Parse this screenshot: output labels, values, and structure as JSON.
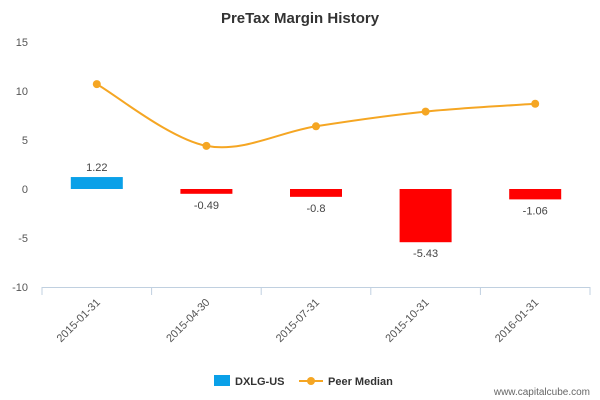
{
  "chart_data": {
    "type": "bar",
    "title": "PreTax Margin History",
    "categories": [
      "2015-01-31",
      "2015-04-30",
      "2015-07-31",
      "2015-10-31",
      "2016-01-31"
    ],
    "ylim": [
      -10,
      15
    ],
    "yticks": [
      -10,
      -5,
      0,
      5,
      10,
      15
    ],
    "grid": false,
    "legend_position": "bottom",
    "series": [
      {
        "name": "DXLG-US",
        "kind": "bar",
        "values": [
          1.22,
          -0.49,
          -0.8,
          -5.43,
          -1.06
        ],
        "labels": [
          "1.22",
          "-0.49",
          "-0.8",
          "-5.43",
          "-1.06"
        ],
        "color_positive": "#0aa0e8",
        "color_negative": "#ff0000"
      },
      {
        "name": "Peer Median",
        "kind": "line",
        "values": [
          10.7,
          4.4,
          6.4,
          7.9,
          8.7
        ],
        "color": "#f5a623"
      }
    ]
  },
  "footer": {
    "credit": "www.capitalcube.com"
  }
}
